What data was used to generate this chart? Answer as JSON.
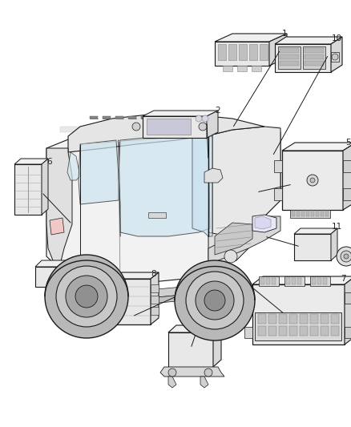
{
  "background_color": "#ffffff",
  "fig_width": 4.38,
  "fig_height": 5.33,
  "dpi": 100,
  "line_color": "#1a1a1a",
  "light_gray": "#d8d8d8",
  "mid_gray": "#aaaaaa",
  "dark_gray": "#555555",
  "label_fontsize": 7.5,
  "label_color": "#222222"
}
